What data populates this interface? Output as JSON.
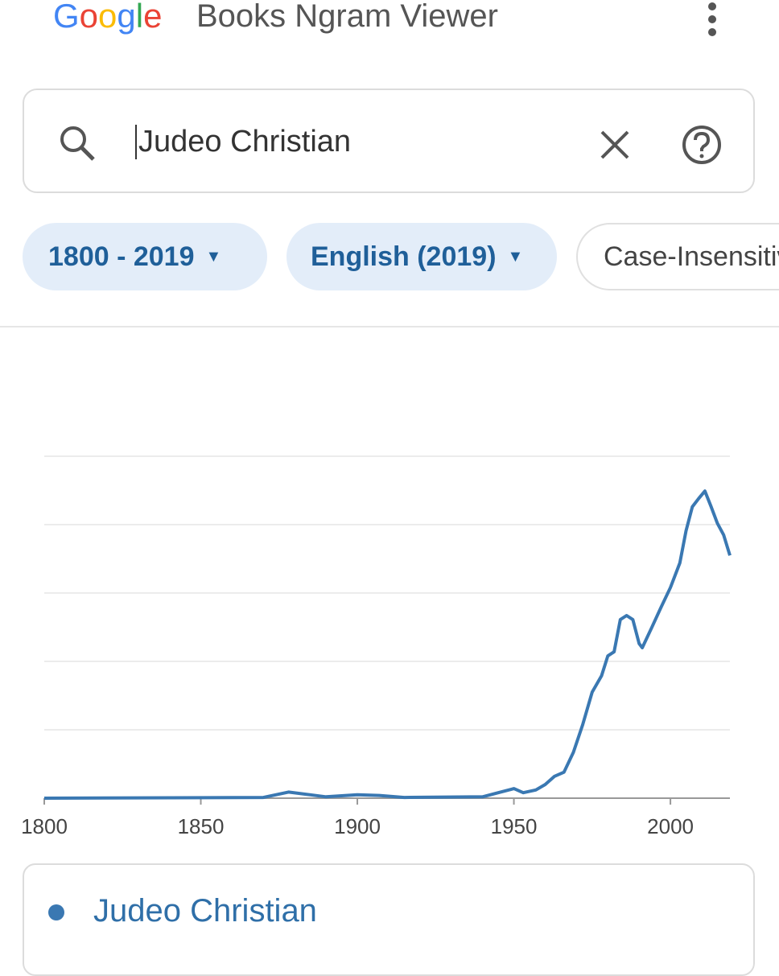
{
  "header": {
    "logo": "Google",
    "title": "Books Ngram Viewer"
  },
  "search": {
    "query": "Judeo Christian"
  },
  "filters": [
    "1800 - 2019",
    "English (2019)",
    "Case-Insensitive"
  ],
  "chart_data": {
    "type": "line",
    "x": [
      1800,
      1870,
      1878,
      1885,
      1890,
      1900,
      1907,
      1915,
      1940,
      1945,
      1950,
      1953,
      1957,
      1960,
      1963,
      1966,
      1969,
      1972,
      1975,
      1978,
      1980,
      1982,
      1984,
      1986,
      1988,
      1990,
      1991,
      1994,
      1997,
      2000,
      2003,
      2005,
      2007,
      2009,
      2011,
      2013,
      2015,
      2017,
      2019
    ],
    "series": [
      {
        "name": "Judeo Christian",
        "color": "#3a78b2",
        "values": [
          0,
          0.01,
          0.09,
          0.05,
          0.02,
          0.05,
          0.04,
          0.01,
          0.02,
          0.08,
          0.14,
          0.08,
          0.12,
          0.2,
          0.32,
          0.38,
          0.67,
          1.08,
          1.55,
          1.79,
          2.08,
          2.14,
          2.61,
          2.67,
          2.61,
          2.26,
          2.2,
          2.49,
          2.79,
          3.08,
          3.44,
          3.91,
          4.26,
          4.38,
          4.49,
          4.26,
          4.02,
          3.85,
          3.55
        ]
      }
    ],
    "xlim": [
      1800,
      2019
    ],
    "xticks": [
      1800,
      1850,
      1900,
      1950,
      2000
    ],
    "ylim": [
      0,
      5
    ],
    "yticks": [
      1,
      2,
      3,
      4,
      5
    ],
    "grid": true
  }
}
